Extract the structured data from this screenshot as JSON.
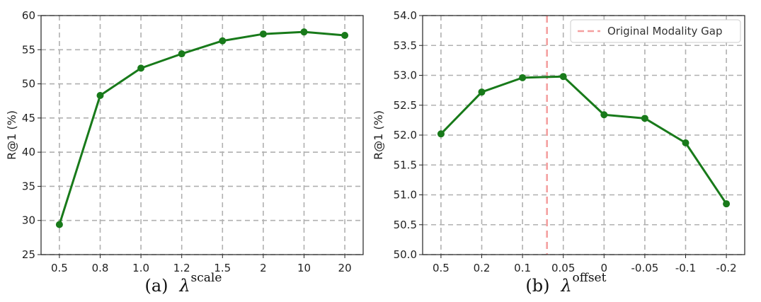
{
  "colors": {
    "series": "#187a1a",
    "grid": "#b0b0b0",
    "reference_line": "#f4a0a0",
    "axis": "#222222"
  },
  "chart_data": [
    {
      "type": "line",
      "caption_prefix": "(a)",
      "caption_symbol": "λ",
      "caption_superscript": "scale",
      "xlabel": "",
      "ylabel": "R@1 (%)",
      "categories": [
        "0.5",
        "0.8",
        "1.0",
        "1.2",
        "1.5",
        "2",
        "10",
        "20"
      ],
      "series": [
        {
          "values": [
            29.4,
            48.3,
            52.3,
            54.4,
            56.3,
            57.3,
            57.6,
            57.1
          ]
        }
      ],
      "ylim": [
        25,
        60
      ],
      "yticks": [
        25,
        30,
        35,
        40,
        45,
        50,
        55,
        60
      ],
      "ytick_labels": [
        "25",
        "30",
        "35",
        "40",
        "45",
        "50",
        "55",
        "60"
      ],
      "grid": true,
      "grid_style": "dashed"
    },
    {
      "type": "line",
      "caption_prefix": "(b)",
      "caption_symbol": "λ",
      "caption_superscript": "offset",
      "xlabel": "",
      "ylabel": "R@1 (%)",
      "categories": [
        "0.5",
        "0.2",
        "0.1",
        "0.05",
        "0",
        "-0.05",
        "-0.1",
        "-0.2"
      ],
      "series": [
        {
          "values": [
            52.02,
            52.72,
            52.96,
            52.98,
            52.34,
            52.28,
            51.87,
            50.85
          ]
        }
      ],
      "reference_line": {
        "label": "Original Modality Gap",
        "x_position_between_categories": 2.6,
        "style": "dashed"
      },
      "ylim": [
        50.0,
        54.0
      ],
      "yticks": [
        50.0,
        50.5,
        51.0,
        51.5,
        52.0,
        52.5,
        53.0,
        53.5,
        54.0
      ],
      "ytick_labels": [
        "50.0",
        "50.5",
        "51.0",
        "51.5",
        "52.0",
        "52.5",
        "53.0",
        "53.5",
        "54.0"
      ],
      "legend_position": "top-right",
      "grid": true,
      "grid_style": "dashed"
    }
  ]
}
